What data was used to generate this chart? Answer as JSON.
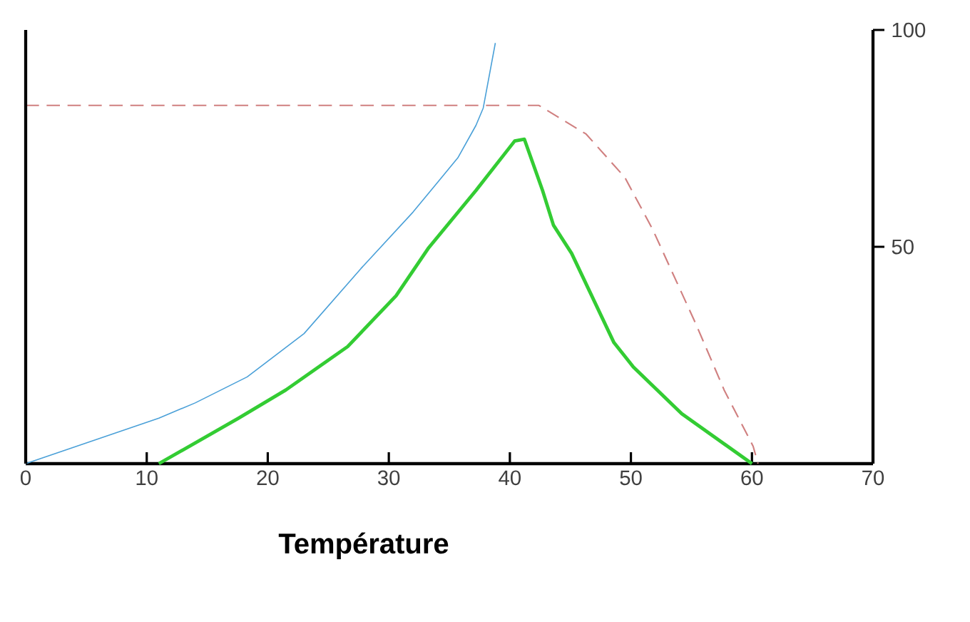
{
  "chart_data": {
    "type": "line",
    "xlabel": "Température",
    "xlim": [
      0,
      70
    ],
    "xticks": [
      0,
      10,
      20,
      30,
      40,
      50,
      60,
      70
    ],
    "ylim": [
      0,
      100
    ],
    "yticks": [
      50,
      100
    ],
    "grid": false,
    "series": [
      {
        "color": "#4aa0d8",
        "line_style": "solid",
        "x": [
          0,
          11,
          14,
          18.3,
          23,
          27.7,
          32,
          35.7,
          37.2,
          37.8,
          38.8
        ],
        "values": [
          0,
          10.5,
          14,
          20,
          30,
          45,
          58,
          70.5,
          78,
          82,
          97
        ]
      },
      {
        "color": "#33cc33",
        "line_style": "solid",
        "x": [
          11,
          17.6,
          21.5,
          26.6,
          30.6,
          33.3,
          37.2,
          40.4,
          41.2,
          42.7,
          43.6,
          45.1,
          48.6,
          50.2,
          54.2,
          60
        ],
        "values": [
          0,
          10.5,
          17,
          27,
          38.7,
          49.8,
          63,
          74.4,
          74.8,
          63,
          55,
          48.5,
          27.9,
          22.3,
          11.5,
          0
        ]
      },
      {
        "color": "#d08080",
        "line_style": "dashed",
        "x": [
          0,
          20,
          42.4,
          46.3,
          49.5,
          51.8,
          55.4,
          57.7,
          60.1,
          60.5
        ],
        "values": [
          82.6,
          82.6,
          82.6,
          76,
          66,
          54,
          32,
          17,
          4,
          0
        ]
      }
    ]
  }
}
